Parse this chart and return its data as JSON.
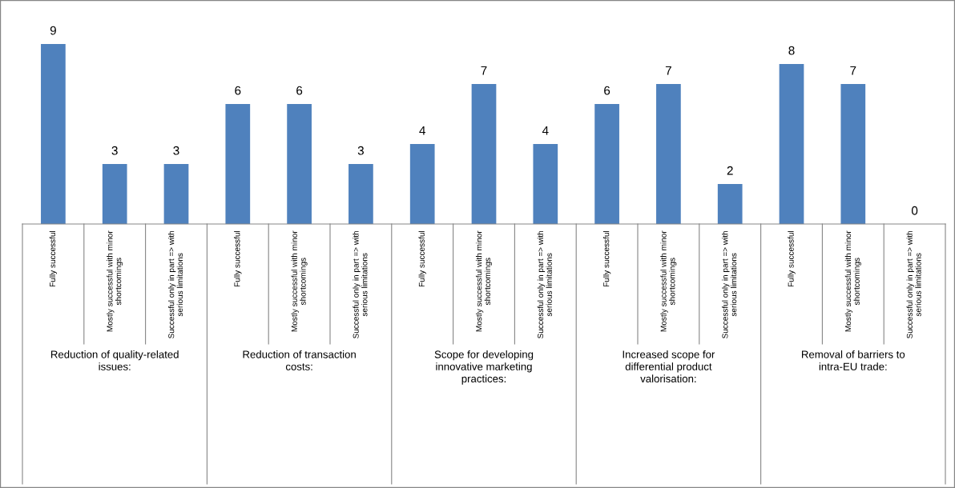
{
  "chart_data": {
    "type": "bar",
    "categories": [
      "Fully successful",
      "Mostly successful with minor shortcomings",
      "Successful only in part => with serious limitations",
      "Fully successful",
      "Mostly successful with minor shortcomings",
      "Successful only in part => with serious limitations",
      "Fully successful",
      "Mostly successful with minor shortcomings",
      "Successful only in part => with serious limitations",
      "Fully successful",
      "Mostly successful with minor shortcomings",
      "Successful only in part => with serious limitations",
      "Fully successful",
      "Mostly successful with minor shortcomings",
      "Successful only in part => with serious limitations"
    ],
    "values": [
      9,
      3,
      3,
      6,
      6,
      3,
      4,
      7,
      4,
      6,
      7,
      2,
      8,
      7,
      0
    ],
    "color": "#4f81bd",
    "data_labels": true,
    "tick_labels": "x",
    "grid": false,
    "legend": false,
    "annotations": [
      "Reduction of quality-related issues:",
      "Reduction of transaction costs:",
      "Scope for developing innovative marketing practices:",
      "Increased scope for differential product valorisation:",
      "Removal of barriers to intra-EU trade:"
    ]
  }
}
